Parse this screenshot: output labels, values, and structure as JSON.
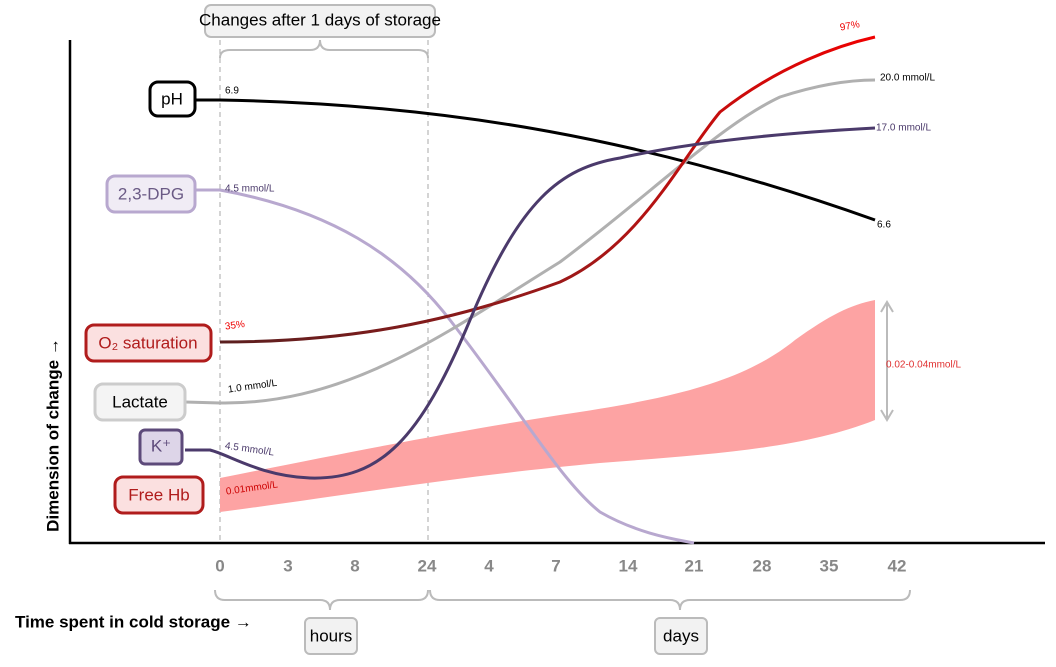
{
  "header": {
    "title": "Changes after 1 days of storage"
  },
  "axes": {
    "y_label": "Dimension of change →",
    "x_label": "Time spent in cold storage →",
    "x_ticks": [
      "0",
      "3",
      "8",
      "24",
      "4",
      "7",
      "14",
      "21",
      "28",
      "35",
      "42"
    ],
    "groups": [
      "hours",
      "days"
    ]
  },
  "series_labels": {
    "ph": "pH",
    "dpg": "2,3-DPG",
    "o2": "O₂ saturation",
    "lactate": "Lactate",
    "k": "K⁺",
    "hb": "Free Hb"
  },
  "annotations": {
    "ph_start": "6.9",
    "ph_end": "6.6",
    "dpg_start": "4.5 mmol/L",
    "o2_start": "35%",
    "o2_end": "97%",
    "lactate_start": "1.0 mmol/L",
    "lactate_end": "20.0 mmol/L",
    "k_start": "4.5 mmol/L",
    "k_end": "17.0 mmol/L",
    "hb_start": "0.01mmol/L",
    "hb_end": "0.02-0.04mmol/L"
  }
}
